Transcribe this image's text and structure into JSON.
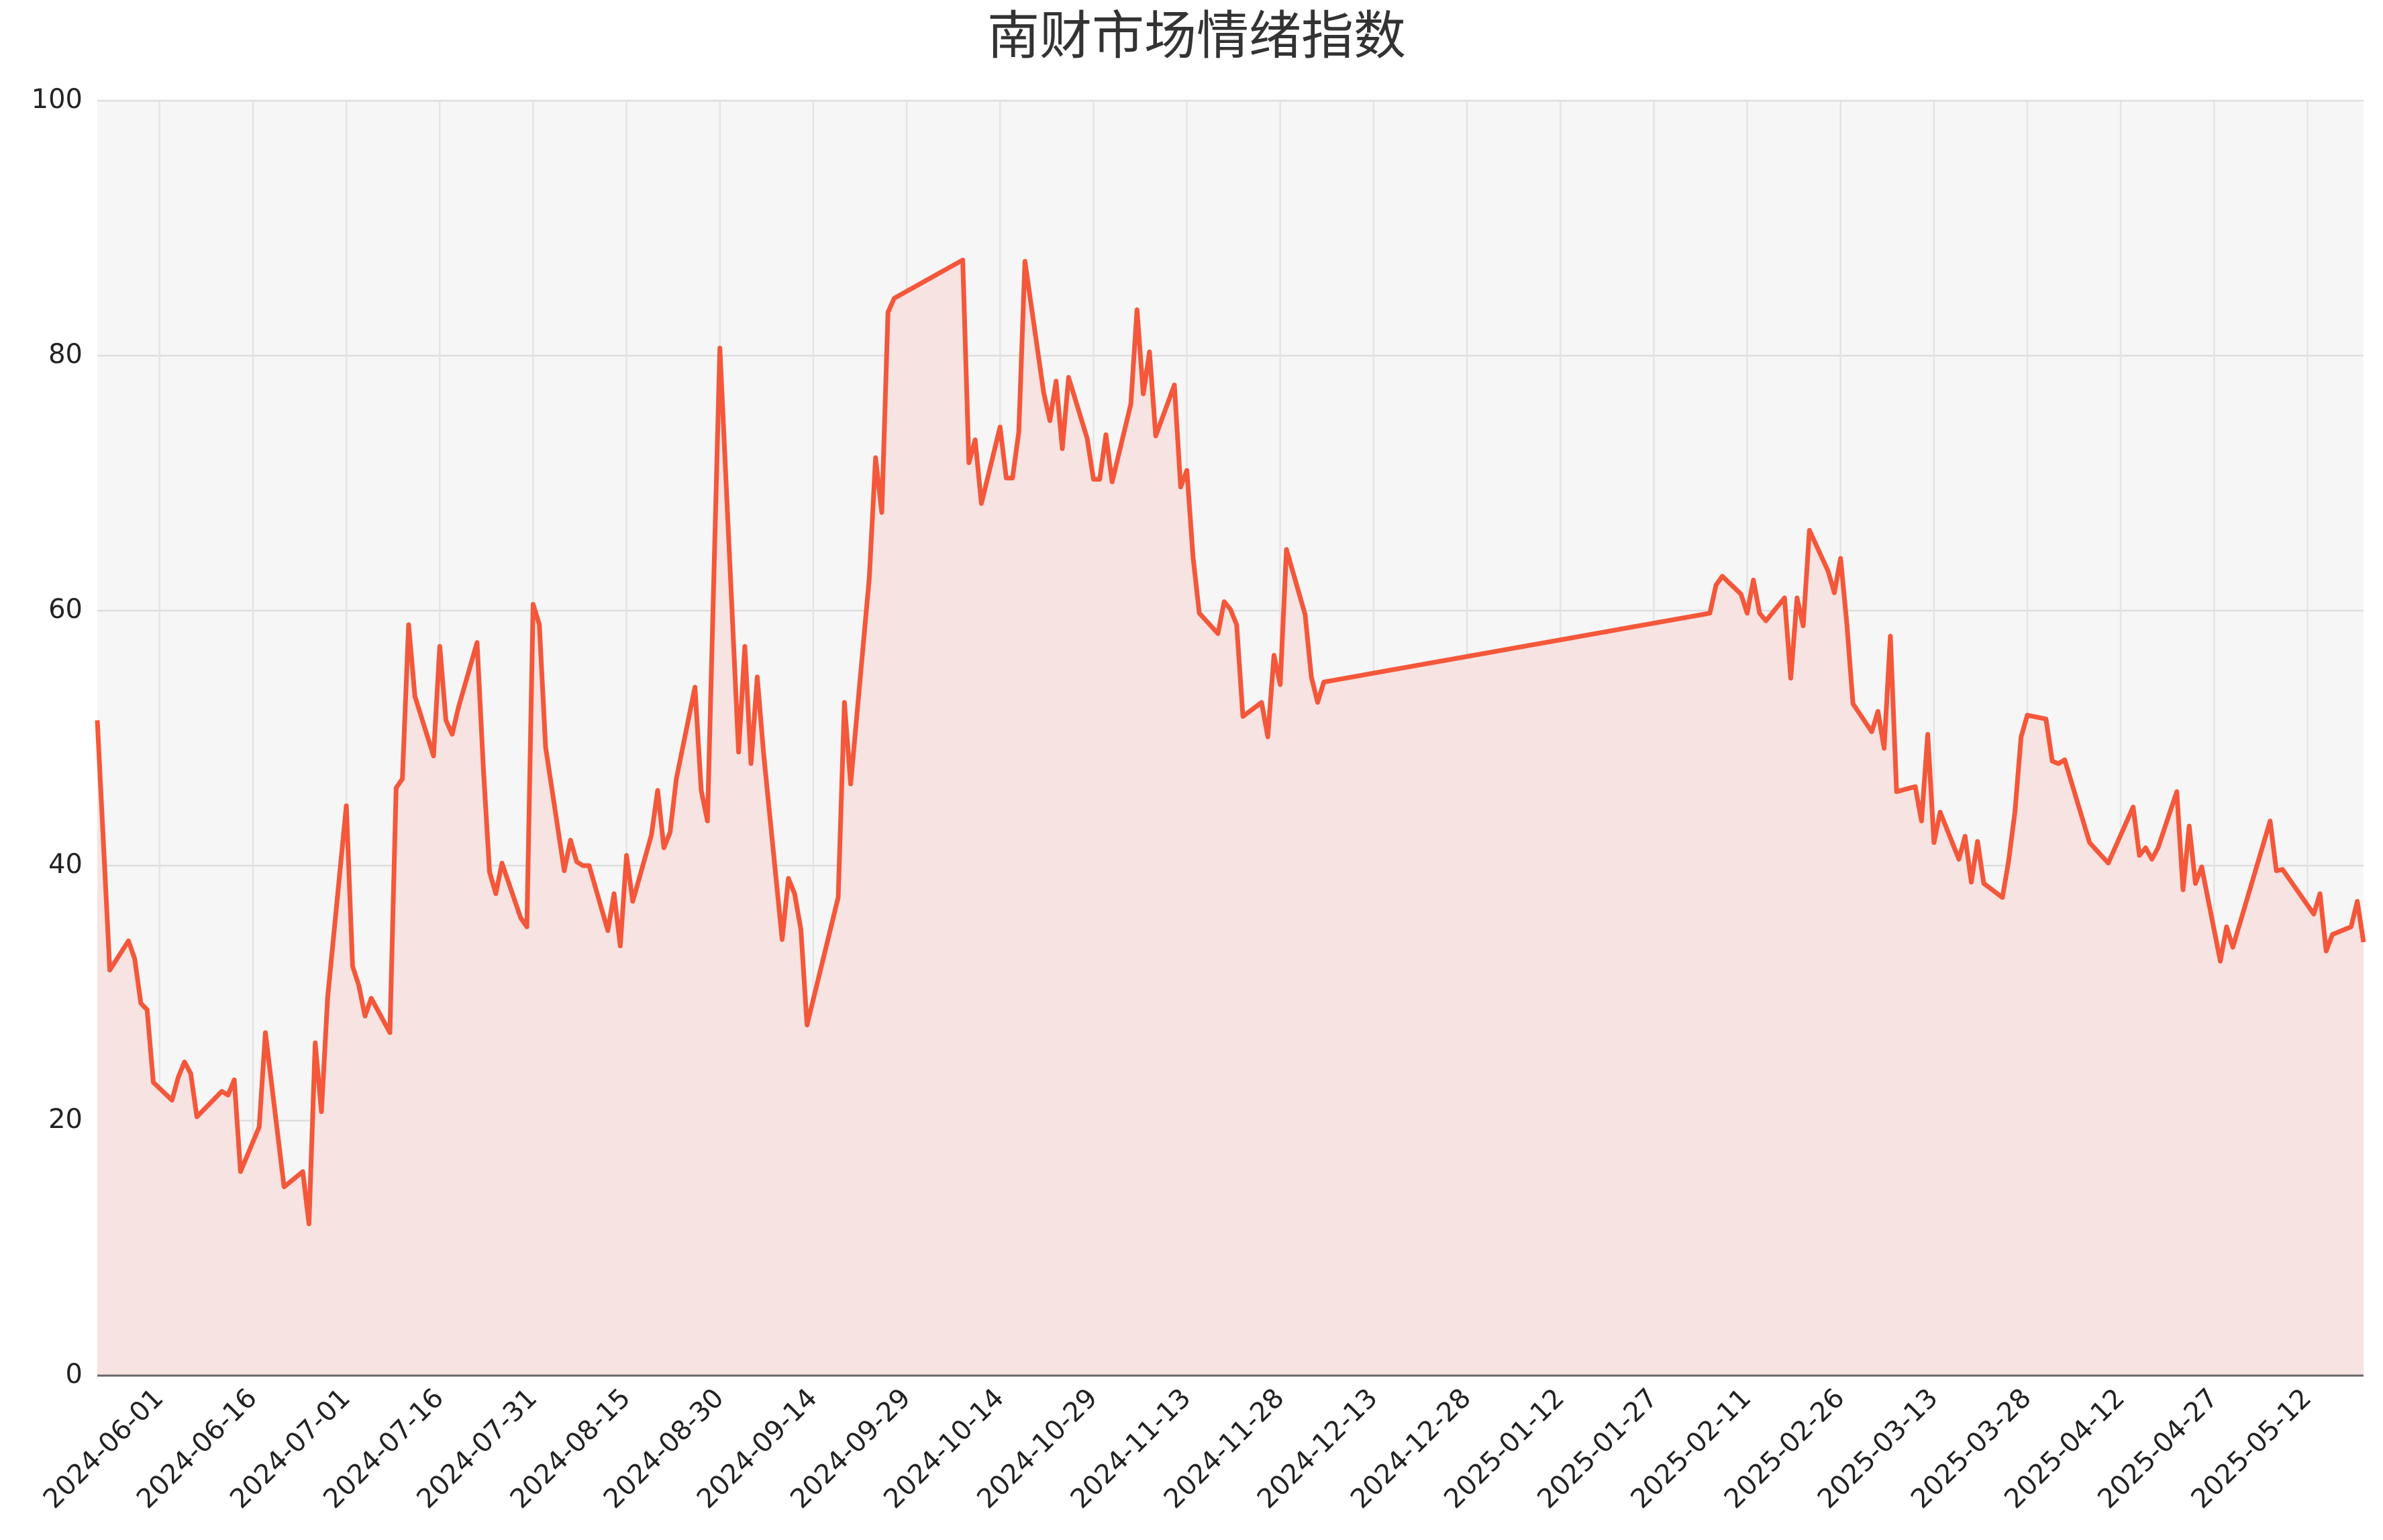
{
  "chart_data": {
    "type": "area",
    "title": "南财市场情绪指数",
    "x": [
      "2024-05-22",
      "2024-05-24",
      "2024-05-27",
      "2024-05-28",
      "2024-05-29",
      "2024-05-30",
      "2024-05-31",
      "2024-06-03",
      "2024-06-04",
      "2024-06-05",
      "2024-06-06",
      "2024-06-07",
      "2024-06-11",
      "2024-06-12",
      "2024-06-13",
      "2024-06-14",
      "2024-06-17",
      "2024-06-18",
      "2024-06-21",
      "2024-06-24",
      "2024-06-25",
      "2024-06-26",
      "2024-06-27",
      "2024-06-28",
      "2024-07-01",
      "2024-07-02",
      "2024-07-03",
      "2024-07-04",
      "2024-07-05",
      "2024-07-08",
      "2024-07-09",
      "2024-07-10",
      "2024-07-11",
      "2024-07-12",
      "2024-07-15",
      "2024-07-16",
      "2024-07-17",
      "2024-07-18",
      "2024-07-19",
      "2024-07-22",
      "2024-07-23",
      "2024-07-24",
      "2024-07-25",
      "2024-07-26",
      "2024-07-29",
      "2024-07-30",
      "2024-07-31",
      "2024-08-01",
      "2024-08-02",
      "2024-08-05",
      "2024-08-06",
      "2024-08-07",
      "2024-08-08",
      "2024-08-09",
      "2024-08-12",
      "2024-08-13",
      "2024-08-14",
      "2024-08-15",
      "2024-08-16",
      "2024-08-19",
      "2024-08-20",
      "2024-08-21",
      "2024-08-22",
      "2024-08-23",
      "2024-08-26",
      "2024-08-27",
      "2024-08-28",
      "2024-08-30",
      "2024-09-02",
      "2024-09-03",
      "2024-09-04",
      "2024-09-05",
      "2024-09-06",
      "2024-09-09",
      "2024-09-10",
      "2024-09-11",
      "2024-09-12",
      "2024-09-13",
      "2024-09-18",
      "2024-09-19",
      "2024-09-20",
      "2024-09-23",
      "2024-09-24",
      "2024-09-25",
      "2024-09-26",
      "2024-09-27",
      "2024-10-08",
      "2024-10-09",
      "2024-10-10",
      "2024-10-11",
      "2024-10-14",
      "2024-10-15",
      "2024-10-16",
      "2024-10-17",
      "2024-10-18",
      "2024-10-21",
      "2024-10-22",
      "2024-10-23",
      "2024-10-24",
      "2024-10-25",
      "2024-10-28",
      "2024-10-29",
      "2024-10-30",
      "2024-10-31",
      "2024-11-01",
      "2024-11-04",
      "2024-11-05",
      "2024-11-06",
      "2024-11-07",
      "2024-11-08",
      "2024-11-11",
      "2024-11-12",
      "2024-11-13",
      "2024-11-14",
      "2024-11-15",
      "2024-11-18",
      "2024-11-19",
      "2024-11-20",
      "2024-11-21",
      "2024-11-22",
      "2024-11-25",
      "2024-11-26",
      "2024-11-27",
      "2024-11-28",
      "2024-11-29",
      "2024-12-02",
      "2024-12-03",
      "2024-12-04",
      "2024-12-05",
      "2025-02-05",
      "2025-02-06",
      "2025-02-07",
      "2025-02-10",
      "2025-02-11",
      "2025-02-12",
      "2025-02-13",
      "2025-02-14",
      "2025-02-17",
      "2025-02-18",
      "2025-02-19",
      "2025-02-20",
      "2025-02-21",
      "2025-02-24",
      "2025-02-25",
      "2025-02-26",
      "2025-02-27",
      "2025-02-28",
      "2025-03-03",
      "2025-03-04",
      "2025-03-05",
      "2025-03-06",
      "2025-03-07",
      "2025-03-10",
      "2025-03-11",
      "2025-03-12",
      "2025-03-13",
      "2025-03-14",
      "2025-03-17",
      "2025-03-18",
      "2025-03-19",
      "2025-03-20",
      "2025-03-21",
      "2025-03-24",
      "2025-03-25",
      "2025-03-26",
      "2025-03-27",
      "2025-03-28",
      "2025-03-31",
      "2025-04-01",
      "2025-04-02",
      "2025-04-03",
      "2025-04-07",
      "2025-04-10",
      "2025-04-14",
      "2025-04-15",
      "2025-04-16",
      "2025-04-17",
      "2025-04-18",
      "2025-04-21",
      "2025-04-22",
      "2025-04-23",
      "2025-04-24",
      "2025-04-25",
      "2025-04-28",
      "2025-04-29",
      "2025-04-30",
      "2025-05-06",
      "2025-05-07",
      "2025-05-08",
      "2025-05-13",
      "2025-05-14",
      "2025-05-15",
      "2025-05-16",
      "2025-05-19",
      "2025-05-20",
      "2025-05-21"
    ],
    "values": [
      51.4,
      31.8,
      34.1,
      32.7,
      29.2,
      28.7,
      23.0,
      21.6,
      23.4,
      24.6,
      23.7,
      20.3,
      22.3,
      22.0,
      23.2,
      16.0,
      19.5,
      26.9,
      14.8,
      16.0,
      11.9,
      26.1,
      20.7,
      29.7,
      44.7,
      32.1,
      30.6,
      28.2,
      29.6,
      26.9,
      46.1,
      46.8,
      58.9,
      53.3,
      48.6,
      57.2,
      51.4,
      50.3,
      52.4,
      57.5,
      47.7,
      39.5,
      37.8,
      40.2,
      35.9,
      35.2,
      60.5,
      58.9,
      49.3,
      39.6,
      42.0,
      40.3,
      40.0,
      40.0,
      34.9,
      37.8,
      33.7,
      40.8,
      37.2,
      42.4,
      45.9,
      41.4,
      42.6,
      46.8,
      54.0,
      45.9,
      43.5,
      80.6,
      48.9,
      57.2,
      48.0,
      54.8,
      48.9,
      34.2,
      39.0,
      37.8,
      35.0,
      27.5,
      37.5,
      52.8,
      46.4,
      62.6,
      72.0,
      67.7,
      83.4,
      84.5,
      87.5,
      71.6,
      73.4,
      68.4,
      74.4,
      70.4,
      70.4,
      74.0,
      87.4,
      77.1,
      74.9,
      78.0,
      72.7,
      78.3,
      73.5,
      70.3,
      70.3,
      73.8,
      70.1,
      76.2,
      83.6,
      77.0,
      80.3,
      73.7,
      77.7,
      69.7,
      71.0,
      64.2,
      59.8,
      58.2,
      60.7,
      60.1,
      58.9,
      51.7,
      52.8,
      50.1,
      56.5,
      54.2,
      64.8,
      59.7,
      54.8,
      52.8,
      54.4,
      59.8,
      62.0,
      62.7,
      61.3,
      59.8,
      62.4,
      59.8,
      59.2,
      61.0,
      54.7,
      61.0,
      58.8,
      66.3,
      63.1,
      61.4,
      64.1,
      59.0,
      52.7,
      50.5,
      52.1,
      49.2,
      58.0,
      45.8,
      46.2,
      43.5,
      50.3,
      41.8,
      44.2,
      40.5,
      42.3,
      38.7,
      41.9,
      38.6,
      37.5,
      40.4,
      44.2,
      50.1,
      51.8,
      51.5,
      48.2,
      48.0,
      48.3,
      41.8,
      40.2,
      44.6,
      40.8,
      41.4,
      40.5,
      41.4,
      45.8,
      38.1,
      43.1,
      38.6,
      39.9,
      32.5,
      35.2,
      33.6,
      43.5,
      39.6,
      39.7,
      36.2,
      37.8,
      33.3,
      34.6,
      35.2,
      37.2,
      34.0
    ],
    "color": "#f4573a",
    "fill_color": "#f7e3e1",
    "background": "#f6f6f6",
    "grid": true,
    "xlim": [
      "2024-05-22",
      "2025-05-21"
    ],
    "xticks": [
      "2024-06-01",
      "2024-06-16",
      "2024-07-01",
      "2024-07-16",
      "2024-07-31",
      "2024-08-15",
      "2024-08-30",
      "2024-09-14",
      "2024-09-29",
      "2024-10-14",
      "2024-10-29",
      "2024-11-13",
      "2024-11-28",
      "2024-12-13",
      "2024-12-28",
      "2025-01-12",
      "2025-01-27",
      "2025-02-11",
      "2025-02-26",
      "2025-03-13",
      "2025-03-28",
      "2025-04-12",
      "2025-04-27",
      "2025-05-12"
    ],
    "ylim": [
      0,
      100
    ],
    "yticks": [
      0,
      20,
      40,
      60,
      80,
      100
    ]
  }
}
